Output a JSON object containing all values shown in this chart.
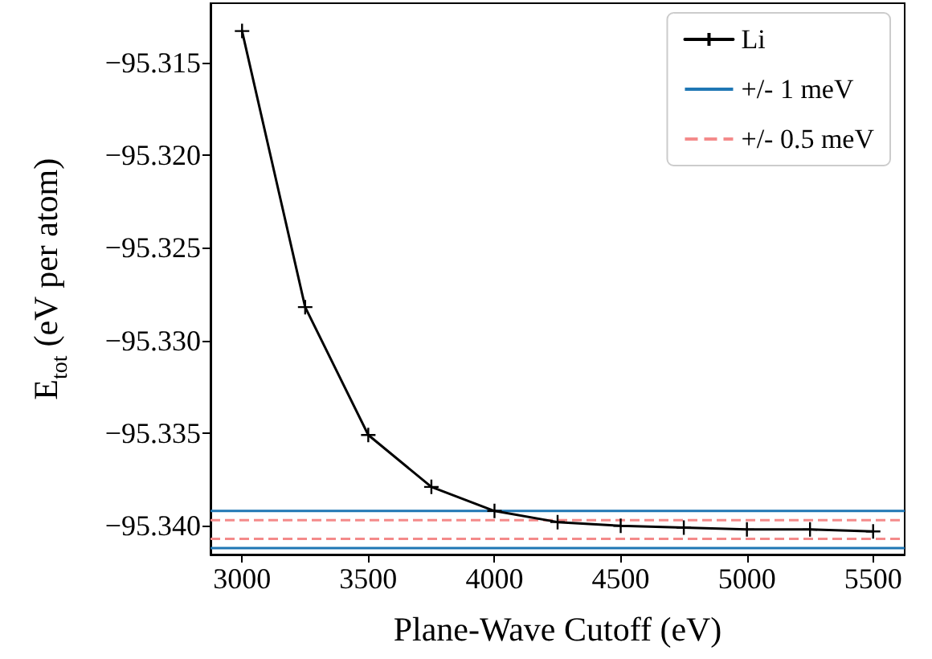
{
  "chart_data": {
    "type": "line",
    "xlabel": "Plane-Wave Cutoff (eV)",
    "ylabel": "E$_{tot}$ (eV per atom)",
    "x": [
      3000,
      3250,
      3500,
      3750,
      4000,
      4250,
      4500,
      4750,
      5000,
      5250,
      5500
    ],
    "series": [
      {
        "name": "Li",
        "color": "#000000",
        "values": [
          -95.3133,
          -95.3282,
          -95.3351,
          -95.3379,
          -95.3392,
          -95.3398,
          -95.34,
          -95.3401,
          -95.3402,
          -95.3402,
          -95.3403
        ]
      }
    ],
    "marker": "cross",
    "line_style": "solid",
    "ref_lines": [
      {
        "axis": "y",
        "value": -95.3392,
        "label": "+/- 1 meV",
        "color": "#1f77b4",
        "line_style": "solid"
      },
      {
        "axis": "y",
        "value": -95.3412,
        "color": "#1f77b4",
        "line_style": "solid"
      },
      {
        "axis": "y",
        "value": -95.3397,
        "label": "+/- 0.5 meV",
        "color": "#f48a8a",
        "line_style": "dashed"
      },
      {
        "axis": "y",
        "value": -95.3407,
        "color": "#f48a8a",
        "line_style": "dashed"
      }
    ],
    "xlim": [
      2875,
      5625
    ],
    "xticks": [
      3000,
      3500,
      4000,
      4500,
      5000,
      5500
    ],
    "ylim": [
      -95.34155,
      -95.3118
    ],
    "yticks": [
      {
        "value": -95.34,
        "label": "−95.340"
      },
      {
        "value": -95.335,
        "label": "−95.335"
      },
      {
        "value": -95.33,
        "label": "−95.330"
      },
      {
        "value": -95.325,
        "label": "−95.325"
      },
      {
        "value": -95.32,
        "label": "−95.320"
      },
      {
        "value": -95.315,
        "label": "−95.315"
      }
    ],
    "grid": false,
    "legend": "top right"
  }
}
